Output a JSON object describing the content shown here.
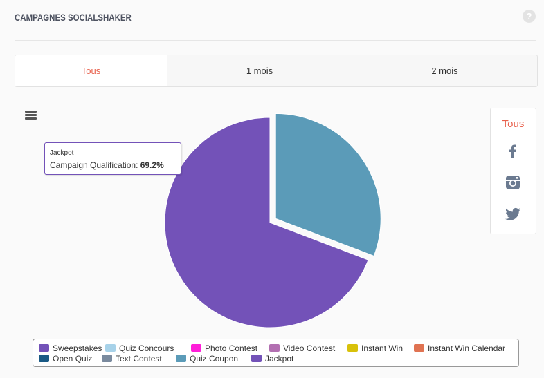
{
  "header": {
    "title": "Campagnes SocialShaker",
    "help": "?"
  },
  "tabs": [
    {
      "label": "Tous",
      "active": true
    },
    {
      "label": "1 mois",
      "active": false
    },
    {
      "label": "2 mois",
      "active": false
    }
  ],
  "networks": {
    "all_label": "Tous",
    "items": [
      {
        "icon": "facebook-icon"
      },
      {
        "icon": "instagram-icon"
      },
      {
        "icon": "twitter-icon"
      }
    ]
  },
  "tooltip": {
    "title": "Jackpot",
    "label": "Campaign Qualification:",
    "value": "69.2%"
  },
  "chart_data": {
    "type": "pie",
    "series_label": "Campaign Qualification",
    "slices": [
      {
        "name": "Jackpot",
        "value": 69.2,
        "color": "#7352b8",
        "offset": false
      },
      {
        "name": "Quiz Coupon",
        "value": 30.8,
        "color": "#5b9bb8",
        "offset": true
      }
    ],
    "legend": [
      {
        "name": "Sweepstakes",
        "color": "#7352b8"
      },
      {
        "name": "Quiz Concours",
        "color": "#a7d2e9"
      },
      {
        "name": "Photo Contest",
        "color": "#ff1ed9"
      },
      {
        "name": "Video Contest",
        "color": "#b26fb1"
      },
      {
        "name": "Instant Win",
        "color": "#d8c10a"
      },
      {
        "name": "Instant Win Calendar",
        "color": "#e07352"
      },
      {
        "name": "Open Quiz",
        "color": "#1a5a85"
      },
      {
        "name": "Text Contest",
        "color": "#7a8a9e"
      },
      {
        "name": "Quiz Coupon",
        "color": "#5b9bb8"
      },
      {
        "name": "Jackpot",
        "color": "#7352b8"
      }
    ],
    "legend_placement": "bottom"
  }
}
